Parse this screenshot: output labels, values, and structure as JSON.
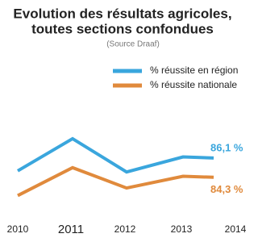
{
  "chart_data": {
    "type": "line",
    "title": [
      "Evolution des résultats agricoles,",
      "toutes sections confondues"
    ],
    "subtitle": "(Source Draaf)",
    "categories": [
      "2010",
      "2011",
      "2012",
      "2013",
      "2014"
    ],
    "series": [
      {
        "name": "% réussite en région",
        "color": "#3aa6dd",
        "values": [
          84.9,
          87.9,
          84.8,
          86.2,
          86.1
        ],
        "value_labels": [
          null,
          null,
          null,
          null,
          "86,1 %"
        ]
      },
      {
        "name": "% réussite nationale",
        "color": "#e08a3c",
        "values": [
          82.6,
          85.2,
          83.3,
          84.4,
          84.3
        ],
        "value_labels": [
          null,
          null,
          null,
          null,
          "84,3 %"
        ]
      }
    ],
    "ylim": [
      80,
      90
    ]
  }
}
